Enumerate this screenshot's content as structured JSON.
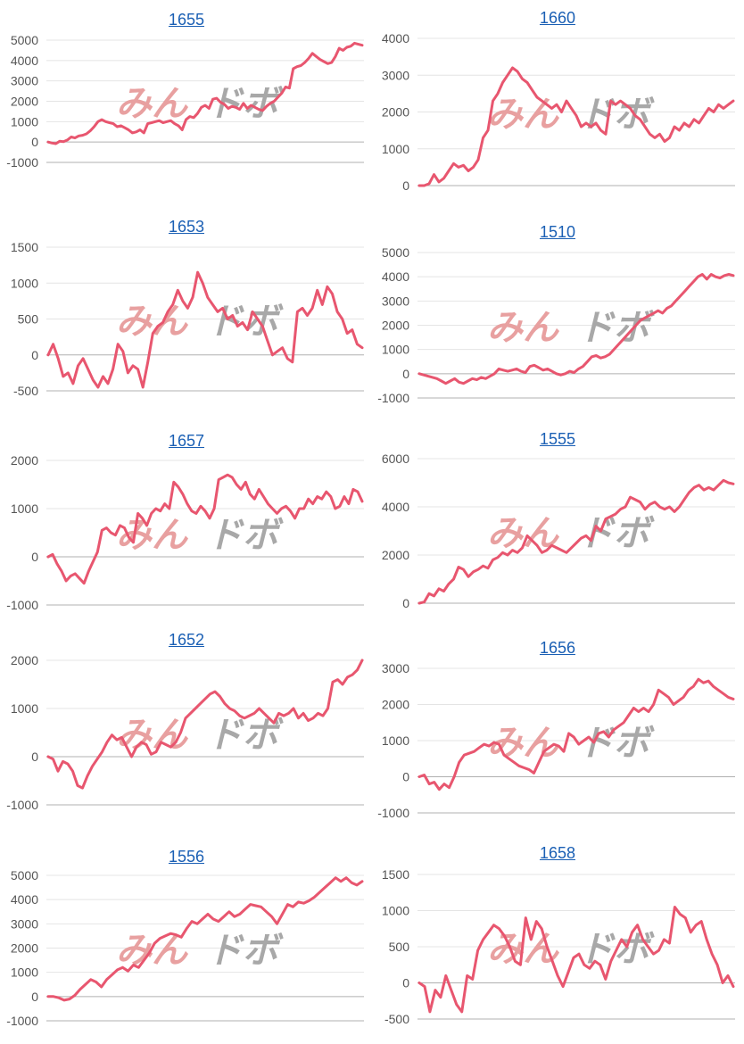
{
  "watermark": {
    "text_left": "みん",
    "text_right": "ドボ",
    "color_left": "#e8a0a0",
    "color_right": "#a8a8a8"
  },
  "line_color": "#e8566f",
  "chart_data": [
    {
      "type": "line",
      "title": "1655",
      "ylim": [
        -1000,
        5000
      ],
      "yticks": [
        "5000",
        "4000",
        "3000",
        "2000",
        "1000",
        "0",
        "-1000"
      ],
      "values": [
        0,
        -50,
        -80,
        40,
        20,
        100,
        250,
        200,
        300,
        330,
        400,
        550,
        750,
        1000,
        1100,
        1000,
        950,
        900,
        750,
        800,
        700,
        600,
        450,
        500,
        600,
        450,
        900,
        950,
        1000,
        1050,
        950,
        1000,
        1050,
        900,
        800,
        600,
        1100,
        1250,
        1200,
        1400,
        1700,
        1800,
        1650,
        2100,
        2150,
        1950,
        1850,
        1650,
        1750,
        1700,
        1600,
        1900,
        1650,
        1800,
        1700,
        1600,
        1550,
        1750,
        1900,
        2000,
        2200,
        2400,
        2700,
        2650,
        3600,
        3700,
        3750,
        3900,
        4100,
        4350,
        4200,
        4050,
        3950,
        3850,
        3900,
        4200,
        4600,
        4500,
        4650,
        4700,
        4850,
        4800,
        4750
      ]
    },
    {
      "type": "line",
      "title": "1660",
      "ylim": [
        0,
        4000
      ],
      "yticks": [
        "4000",
        "3000",
        "2000",
        "1000",
        "0"
      ],
      "values": [
        0,
        0,
        50,
        300,
        100,
        200,
        400,
        600,
        500,
        550,
        400,
        500,
        700,
        1300,
        1500,
        2300,
        2500,
        2800,
        3000,
        3200,
        3100,
        2900,
        2800,
        2600,
        2400,
        2300,
        2200,
        2100,
        2200,
        2000,
        2300,
        2100,
        1900,
        1600,
        1700,
        1600,
        1700,
        1500,
        1400,
        2300,
        2200,
        2300,
        2200,
        2100,
        1900,
        1800,
        1600,
        1400,
        1300,
        1400,
        1200,
        1300,
        1600,
        1500,
        1700,
        1600,
        1800,
        1700,
        1900,
        2100,
        2000,
        2200,
        2100,
        2200,
        2300
      ]
    },
    {
      "type": "line",
      "title": "1653",
      "ylim": [
        -500,
        1500
      ],
      "yticks": [
        "1500",
        "1000",
        "500",
        "0",
        "-500"
      ],
      "values": [
        0,
        150,
        -50,
        -300,
        -250,
        -400,
        -150,
        -50,
        -200,
        -350,
        -450,
        -300,
        -400,
        -200,
        150,
        50,
        -250,
        -150,
        -200,
        -450,
        -100,
        300,
        400,
        450,
        600,
        700,
        900,
        750,
        650,
        800,
        1150,
        1000,
        800,
        700,
        600,
        650,
        500,
        550,
        400,
        450,
        350,
        600,
        500,
        400,
        200,
        0,
        50,
        100,
        -50,
        -100,
        600,
        650,
        550,
        650,
        900,
        700,
        950,
        850,
        600,
        500,
        300,
        350,
        150,
        100
      ]
    },
    {
      "type": "line",
      "title": "1510",
      "ylim": [
        -1000,
        5000
      ],
      "yticks": [
        "5000",
        "4000",
        "3000",
        "2000",
        "1000",
        "0",
        "-1000"
      ],
      "values": [
        0,
        -50,
        -100,
        -150,
        -200,
        -300,
        -400,
        -300,
        -200,
        -350,
        -400,
        -300,
        -200,
        -250,
        -150,
        -200,
        -100,
        0,
        200,
        150,
        100,
        150,
        200,
        100,
        50,
        300,
        350,
        250,
        150,
        200,
        100,
        0,
        -50,
        0,
        100,
        50,
        200,
        300,
        500,
        700,
        750,
        650,
        700,
        800,
        1000,
        1200,
        1400,
        1600,
        1800,
        2000,
        2200,
        2300,
        2400,
        2500,
        2600,
        2500,
        2700,
        2800,
        3000,
        3200,
        3400,
        3600,
        3800,
        4000,
        4100,
        3900,
        4100,
        4000,
        3950,
        4050,
        4100,
        4050
      ]
    },
    {
      "type": "line",
      "title": "1657",
      "ylim": [
        -1000,
        2000
      ],
      "yticks": [
        "2000",
        "1000",
        "0",
        "-1000"
      ],
      "values": [
        0,
        50,
        -150,
        -300,
        -500,
        -400,
        -350,
        -450,
        -550,
        -300,
        -100,
        100,
        550,
        600,
        500,
        450,
        650,
        600,
        400,
        300,
        900,
        800,
        650,
        900,
        1000,
        950,
        1100,
        1000,
        1550,
        1450,
        1300,
        1100,
        950,
        900,
        1050,
        950,
        800,
        1000,
        1600,
        1650,
        1700,
        1650,
        1500,
        1400,
        1550,
        1300,
        1200,
        1400,
        1250,
        1100,
        1000,
        900,
        1000,
        1050,
        950,
        800,
        1000,
        1000,
        1200,
        1100,
        1250,
        1200,
        1350,
        1250,
        1000,
        1050,
        1250,
        1100,
        1400,
        1350,
        1150
      ]
    },
    {
      "type": "line",
      "title": "1555",
      "ylim": [
        0,
        6000
      ],
      "yticks": [
        "6000",
        "4000",
        "2000",
        "0"
      ],
      "values": [
        0,
        50,
        400,
        300,
        600,
        500,
        800,
        1000,
        1500,
        1400,
        1100,
        1300,
        1400,
        1550,
        1450,
        1800,
        1900,
        2100,
        2000,
        2200,
        2100,
        2300,
        2800,
        2600,
        2400,
        2100,
        2200,
        2400,
        2300,
        2200,
        2100,
        2300,
        2500,
        2700,
        2800,
        2600,
        3200,
        3000,
        3500,
        3600,
        3700,
        3900,
        4000,
        4400,
        4300,
        4200,
        3900,
        4100,
        4200,
        4000,
        3900,
        4000,
        3800,
        4000,
        4300,
        4600,
        4800,
        4900,
        4700,
        4800,
        4700,
        4900,
        5100,
        5000,
        4950
      ]
    },
    {
      "type": "line",
      "title": "1652",
      "ylim": [
        -1000,
        2000
      ],
      "yticks": [
        "2000",
        "1000",
        "0",
        "-1000"
      ],
      "values": [
        0,
        -50,
        -300,
        -100,
        -150,
        -300,
        -600,
        -650,
        -400,
        -200,
        -50,
        100,
        300,
        450,
        350,
        400,
        200,
        0,
        200,
        300,
        250,
        50,
        100,
        300,
        250,
        200,
        300,
        500,
        800,
        900,
        1000,
        1100,
        1200,
        1300,
        1350,
        1250,
        1100,
        1000,
        950,
        850,
        800,
        850,
        900,
        1000,
        900,
        800,
        700,
        900,
        850,
        900,
        1000,
        800,
        900,
        750,
        800,
        900,
        850,
        1000,
        1550,
        1600,
        1500,
        1650,
        1700,
        1800,
        2000
      ]
    },
    {
      "type": "line",
      "title": "1656",
      "ylim": [
        -1000,
        3000
      ],
      "yticks": [
        "3000",
        "2000",
        "1000",
        "0",
        "-1000"
      ],
      "values": [
        0,
        50,
        -200,
        -150,
        -350,
        -200,
        -300,
        0,
        400,
        600,
        650,
        700,
        800,
        900,
        850,
        950,
        900,
        600,
        500,
        400,
        300,
        250,
        200,
        100,
        400,
        700,
        800,
        900,
        850,
        700,
        1200,
        1100,
        900,
        1000,
        1100,
        950,
        1200,
        1250,
        1100,
        1300,
        1400,
        1500,
        1700,
        1900,
        1800,
        1900,
        1800,
        2000,
        2400,
        2300,
        2200,
        2000,
        2100,
        2200,
        2400,
        2500,
        2700,
        2600,
        2650,
        2500,
        2400,
        2300,
        2200,
        2150
      ]
    },
    {
      "type": "line",
      "title": "1556",
      "ylim": [
        -1000,
        5000
      ],
      "yticks": [
        "5000",
        "4000",
        "3000",
        "2000",
        "1000",
        "0",
        "-1000"
      ],
      "values": [
        0,
        0,
        -50,
        -150,
        -100,
        50,
        300,
        500,
        700,
        600,
        400,
        700,
        900,
        1100,
        1200,
        1050,
        1300,
        1200,
        1500,
        1800,
        2200,
        2400,
        2500,
        2600,
        2550,
        2450,
        2800,
        3100,
        3000,
        3200,
        3400,
        3200,
        3100,
        3300,
        3500,
        3300,
        3400,
        3600,
        3800,
        3750,
        3700,
        3500,
        3300,
        3000,
        3400,
        3800,
        3700,
        3900,
        3850,
        3950,
        4100,
        4300,
        4500,
        4700,
        4900,
        4750,
        4900,
        4700,
        4600,
        4750
      ]
    },
    {
      "type": "line",
      "title": "1658",
      "ylim": [
        -500,
        1500
      ],
      "yticks": [
        "1500",
        "1000",
        "500",
        "0",
        "-500"
      ],
      "values": [
        0,
        -50,
        -400,
        -100,
        -200,
        100,
        -100,
        -300,
        -400,
        100,
        50,
        450,
        600,
        700,
        800,
        750,
        650,
        500,
        300,
        250,
        900,
        600,
        850,
        750,
        500,
        300,
        100,
        -50,
        150,
        350,
        400,
        250,
        200,
        300,
        250,
        50,
        300,
        450,
        600,
        500,
        700,
        800,
        600,
        500,
        400,
        450,
        600,
        550,
        1050,
        950,
        900,
        700,
        800,
        850,
        600,
        400,
        250,
        0,
        100,
        -50
      ]
    }
  ]
}
